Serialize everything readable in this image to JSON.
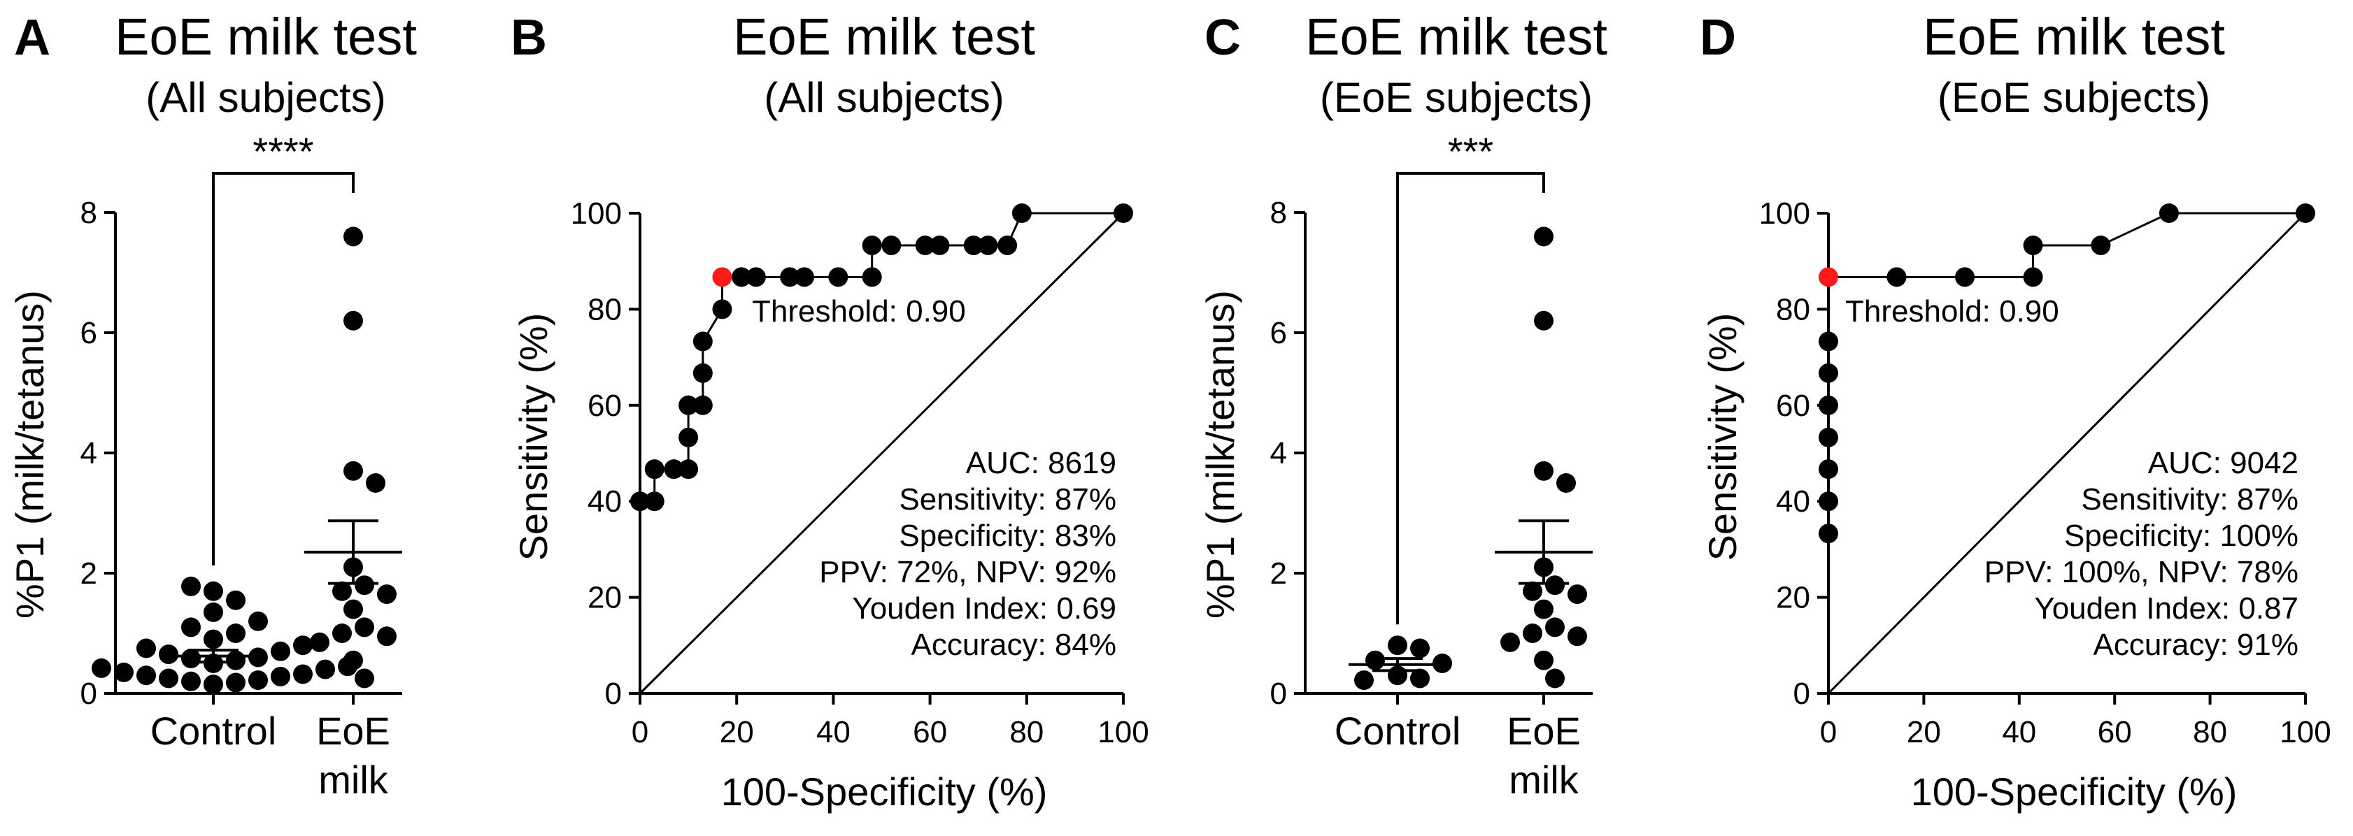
{
  "chart_data": [
    {
      "type": "scatter",
      "panel": "A",
      "title": "EoE milk test",
      "subtitle": "(All subjects)",
      "xlabel": "",
      "ylabel": "%P1 (milk/tetanus)",
      "ylim": [
        0,
        8
      ],
      "yticks": [
        "0",
        "2",
        "4",
        "6",
        "8"
      ],
      "categories": [
        "Control",
        "EoE milk"
      ],
      "category_labels": [
        [
          "Control"
        ],
        [
          "EoE",
          "milk"
        ]
      ],
      "groups": [
        {
          "name": "Control",
          "mean": 0.62,
          "sem": 0.1,
          "values": [
            0.15,
            0.18,
            0.2,
            0.22,
            0.25,
            0.28,
            0.3,
            0.32,
            0.35,
            0.4,
            0.42,
            0.45,
            0.5,
            0.55,
            0.58,
            0.6,
            0.65,
            0.7,
            0.75,
            0.8,
            0.9,
            1.0,
            1.1,
            1.2,
            1.35,
            1.55,
            1.7,
            1.78
          ]
        },
        {
          "name": "EoE milk",
          "mean": 2.35,
          "sem": 0.52,
          "values": [
            7.6,
            6.2,
            3.7,
            3.5,
            2.1,
            1.8,
            1.7,
            1.65,
            1.4,
            1.1,
            1.0,
            0.95,
            0.85,
            0.55,
            0.25
          ]
        }
      ],
      "significance": "****"
    },
    {
      "type": "line",
      "panel": "B",
      "title": "EoE milk test",
      "subtitle": "(All subjects)",
      "xlabel": "100-Specificity (%)",
      "ylabel": "Sensitivity (%)",
      "xlim": [
        0,
        100
      ],
      "ylim": [
        0,
        100
      ],
      "xticks": [
        "0",
        "20",
        "40",
        "60",
        "80",
        "100"
      ],
      "yticks": [
        "0",
        "20",
        "40",
        "60",
        "80",
        "100"
      ],
      "series": [
        {
          "name": "ROC",
          "points": [
            [
              0,
              40
            ],
            [
              3,
              40
            ],
            [
              3,
              46.7
            ],
            [
              7,
              46.7
            ],
            [
              10,
              46.7
            ],
            [
              10,
              53.3
            ],
            [
              10,
              60
            ],
            [
              13,
              60
            ],
            [
              13,
              66.7
            ],
            [
              13,
              73.3
            ],
            [
              17,
              80
            ],
            [
              17,
              86.7
            ],
            [
              21,
              86.7
            ],
            [
              24,
              86.7
            ],
            [
              31,
              86.7
            ],
            [
              34,
              86.7
            ],
            [
              41,
              86.7
            ],
            [
              48,
              86.7
            ],
            [
              48,
              93.3
            ],
            [
              52,
              93.3
            ],
            [
              59,
              93.3
            ],
            [
              62,
              93.3
            ],
            [
              69,
              93.3
            ],
            [
              72,
              93.3
            ],
            [
              76,
              93.3
            ],
            [
              79,
              100
            ],
            [
              100,
              100
            ]
          ]
        },
        {
          "name": "Reference",
          "points": [
            [
              0,
              0
            ],
            [
              100,
              100
            ]
          ]
        }
      ],
      "threshold_point": [
        17,
        86.7
      ],
      "threshold_label": "Threshold: 0.90",
      "stats": [
        "AUC: 8619",
        "Sensitivity: 87%",
        "Specificity: 83%",
        "PPV: 72%, NPV: 92%",
        "Youden Index: 0.69",
        "Accuracy: 84%"
      ],
      "threshold_color": "#ff1a1a"
    },
    {
      "type": "scatter",
      "panel": "C",
      "title": "EoE milk test",
      "subtitle": "(EoE subjects)",
      "xlabel": "",
      "ylabel": "%P1 (milk/tetanus)",
      "ylim": [
        0,
        8
      ],
      "yticks": [
        "0",
        "2",
        "4",
        "6",
        "8"
      ],
      "categories": [
        "Control",
        "EoE milk"
      ],
      "category_labels": [
        [
          "Control"
        ],
        [
          "EoE",
          "milk"
        ]
      ],
      "groups": [
        {
          "name": "Control",
          "mean": 0.48,
          "sem": 0.1,
          "values": [
            0.8,
            0.75,
            0.55,
            0.5,
            0.3,
            0.25,
            0.22
          ]
        },
        {
          "name": "EoE milk",
          "mean": 2.35,
          "sem": 0.52,
          "values": [
            7.6,
            6.2,
            3.7,
            3.5,
            2.1,
            1.8,
            1.7,
            1.65,
            1.4,
            1.1,
            1.0,
            0.95,
            0.85,
            0.55,
            0.25
          ]
        }
      ],
      "significance": "***"
    },
    {
      "type": "line",
      "panel": "D",
      "title": "EoE milk test",
      "subtitle": "(EoE subjects)",
      "xlabel": "100-Specificity (%)",
      "ylabel": "Sensitivity (%)",
      "xlim": [
        0,
        100
      ],
      "ylim": [
        0,
        100
      ],
      "xticks": [
        "0",
        "20",
        "40",
        "60",
        "80",
        "100"
      ],
      "yticks": [
        "0",
        "20",
        "40",
        "60",
        "80",
        "100"
      ],
      "series": [
        {
          "name": "ROC",
          "points": [
            [
              0,
              33.3
            ],
            [
              0,
              40
            ],
            [
              0,
              46.7
            ],
            [
              0,
              53.3
            ],
            [
              0,
              60
            ],
            [
              0,
              66.7
            ],
            [
              0,
              73.3
            ],
            [
              0,
              86.7
            ],
            [
              14.3,
              86.7
            ],
            [
              28.6,
              86.7
            ],
            [
              42.9,
              86.7
            ],
            [
              42.9,
              93.3
            ],
            [
              57.1,
              93.3
            ],
            [
              71.4,
              100
            ],
            [
              100,
              100
            ]
          ]
        },
        {
          "name": "Reference",
          "points": [
            [
              0,
              0
            ],
            [
              100,
              100
            ]
          ]
        }
      ],
      "threshold_point": [
        0,
        86.7
      ],
      "threshold_label": "Threshold: 0.90",
      "stats": [
        "AUC: 9042",
        "Sensitivity: 87%",
        "Specificity: 100%",
        "PPV: 100%, NPV: 78%",
        "Youden Index: 0.87",
        "Accuracy: 91%"
      ],
      "threshold_color": "#ff1a1a"
    }
  ]
}
